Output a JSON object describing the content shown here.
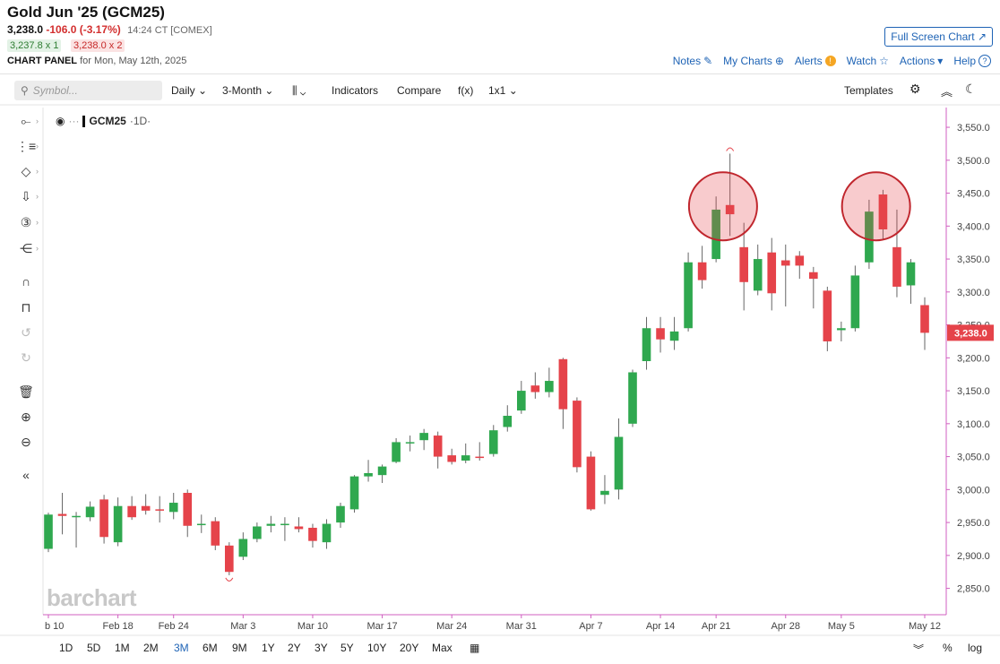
{
  "header": {
    "title": "Gold Jun '25 (GCM25)",
    "last": "3,238.0",
    "change": "-106.0 (-3.17%)",
    "time": "14:24 CT [COMEX]",
    "bid": "3,237.8 x 1",
    "ask": "3,238.0 x 2",
    "panel_label": "CHART PANEL",
    "panel_date": "for Mon, May 12th, 2025"
  },
  "links": {
    "full_screen": "Full Screen Chart ↗",
    "notes": "Notes",
    "my_charts": "My Charts",
    "alerts": "Alerts",
    "watch": "Watch",
    "actions": "Actions",
    "help": "Help"
  },
  "toolbar": {
    "search_placeholder": "Symbol...",
    "interval": "Daily",
    "period": "3-Month",
    "indicators": "Indicators",
    "compare": "Compare",
    "fx": "f(x)",
    "layout": "1x1",
    "templates": "Templates"
  },
  "legend": {
    "symbol": "GCM25",
    "interval": "·1D·"
  },
  "watermark": "barchart",
  "bottom": {
    "ranges": [
      "1D",
      "5D",
      "1M",
      "2M",
      "3M",
      "6M",
      "9M",
      "1Y",
      "2Y",
      "3Y",
      "5Y",
      "10Y",
      "20Y",
      "Max"
    ],
    "active_range": "3M",
    "percent": "%",
    "log": "log"
  },
  "chart_data": {
    "type": "candlestick",
    "title": "",
    "ylim": [
      2810,
      3580
    ],
    "y_ticks": [
      "2,850.0",
      "2,900.0",
      "2,950.0",
      "3,000.0",
      "3,050.0",
      "3,100.0",
      "3,150.0",
      "3,200.0",
      "3,250.0",
      "3,300.0",
      "3,350.0",
      "3,400.0",
      "3,450.0",
      "3,500.0",
      "3,550.0"
    ],
    "x_tick_labels": [
      "b 10",
      "Feb 18",
      "Feb 24",
      "Mar 3",
      "Mar 10",
      "Mar 17",
      "Mar 24",
      "Mar 31",
      "Apr 7",
      "Apr 14",
      "Apr 21",
      "Apr 28",
      "May 5",
      "May 12"
    ],
    "last_price_label": "3,238.0",
    "up_color": "#2fa84f",
    "down_color": "#e5434a",
    "candles": [
      {
        "d": "Feb 10",
        "o": 2910,
        "h": 2965,
        "l": 2905,
        "c": 2962
      },
      {
        "d": "Feb 11",
        "o": 2963,
        "h": 2995,
        "l": 2932,
        "c": 2960
      },
      {
        "d": "Feb 12",
        "o": 2958,
        "h": 2966,
        "l": 2912,
        "c": 2960
      },
      {
        "d": "Feb 13",
        "o": 2958,
        "h": 2982,
        "l": 2952,
        "c": 2974
      },
      {
        "d": "Feb 14",
        "o": 2985,
        "h": 2992,
        "l": 2918,
        "c": 2928
      },
      {
        "d": "Feb 18",
        "o": 2920,
        "h": 2988,
        "l": 2914,
        "c": 2975
      },
      {
        "d": "Feb 19",
        "o": 2975,
        "h": 2990,
        "l": 2954,
        "c": 2958
      },
      {
        "d": "Feb 20",
        "o": 2975,
        "h": 2993,
        "l": 2962,
        "c": 2968
      },
      {
        "d": "Feb 21",
        "o": 2970,
        "h": 2990,
        "l": 2950,
        "c": 2968
      },
      {
        "d": "Feb 24",
        "o": 2966,
        "h": 2995,
        "l": 2955,
        "c": 2980
      },
      {
        "d": "Feb 25",
        "o": 2995,
        "h": 3000,
        "l": 2928,
        "c": 2945
      },
      {
        "d": "Feb 26",
        "o": 2946,
        "h": 2962,
        "l": 2934,
        "c": 2948
      },
      {
        "d": "Feb 27",
        "o": 2952,
        "h": 2958,
        "l": 2908,
        "c": 2915
      },
      {
        "d": "Feb 28",
        "o": 2915,
        "h": 2920,
        "l": 2870,
        "c": 2875
      },
      {
        "d": "Mar 3",
        "o": 2898,
        "h": 2935,
        "l": 2893,
        "c": 2925
      },
      {
        "d": "Mar 4",
        "o": 2925,
        "h": 2950,
        "l": 2920,
        "c": 2944
      },
      {
        "d": "Mar 5",
        "o": 2945,
        "h": 2960,
        "l": 2935,
        "c": 2948
      },
      {
        "d": "Mar 6",
        "o": 2946,
        "h": 2958,
        "l": 2922,
        "c": 2948
      },
      {
        "d": "Mar 7",
        "o": 2944,
        "h": 2958,
        "l": 2935,
        "c": 2940
      },
      {
        "d": "Mar 10",
        "o": 2942,
        "h": 2948,
        "l": 2912,
        "c": 2922
      },
      {
        "d": "Mar 11",
        "o": 2920,
        "h": 2955,
        "l": 2910,
        "c": 2948
      },
      {
        "d": "Mar 12",
        "o": 2950,
        "h": 2980,
        "l": 2942,
        "c": 2975
      },
      {
        "d": "Mar 13",
        "o": 2970,
        "h": 3022,
        "l": 2965,
        "c": 3020
      },
      {
        "d": "Mar 14",
        "o": 3020,
        "h": 3045,
        "l": 3012,
        "c": 3025
      },
      {
        "d": "Mar 17",
        "o": 3022,
        "h": 3038,
        "l": 3010,
        "c": 3035
      },
      {
        "d": "Mar 18",
        "o": 3042,
        "h": 3078,
        "l": 3040,
        "c": 3072
      },
      {
        "d": "Mar 19",
        "o": 3070,
        "h": 3082,
        "l": 3058,
        "c": 3072
      },
      {
        "d": "Mar 20",
        "o": 3075,
        "h": 3092,
        "l": 3060,
        "c": 3086
      },
      {
        "d": "Mar 21",
        "o": 3082,
        "h": 3088,
        "l": 3032,
        "c": 3050
      },
      {
        "d": "Mar 24",
        "o": 3052,
        "h": 3062,
        "l": 3038,
        "c": 3042
      },
      {
        "d": "Mar 25",
        "o": 3044,
        "h": 3070,
        "l": 3040,
        "c": 3052
      },
      {
        "d": "Mar 26",
        "o": 3050,
        "h": 3072,
        "l": 3044,
        "c": 3048
      },
      {
        "d": "Mar 27",
        "o": 3054,
        "h": 3098,
        "l": 3050,
        "c": 3090
      },
      {
        "d": "Mar 28",
        "o": 3095,
        "h": 3128,
        "l": 3088,
        "c": 3112
      },
      {
        "d": "Mar 31",
        "o": 3120,
        "h": 3165,
        "l": 3115,
        "c": 3150
      },
      {
        "d": "Apr 1",
        "o": 3158,
        "h": 3178,
        "l": 3138,
        "c": 3148
      },
      {
        "d": "Apr 2",
        "o": 3148,
        "h": 3185,
        "l": 3140,
        "c": 3165
      },
      {
        "d": "Apr 3",
        "o": 3198,
        "h": 3200,
        "l": 3092,
        "c": 3122
      },
      {
        "d": "Apr 4",
        "o": 3135,
        "h": 3140,
        "l": 3026,
        "c": 3034
      },
      {
        "d": "Apr 7",
        "o": 3050,
        "h": 3058,
        "l": 2968,
        "c": 2970
      },
      {
        "d": "Apr 8",
        "o": 2992,
        "h": 3022,
        "l": 2978,
        "c": 2998
      },
      {
        "d": "Apr 9",
        "o": 3000,
        "h": 3108,
        "l": 2985,
        "c": 3080
      },
      {
        "d": "Apr 10",
        "o": 3100,
        "h": 3182,
        "l": 3095,
        "c": 3178
      },
      {
        "d": "Apr 11",
        "o": 3195,
        "h": 3262,
        "l": 3182,
        "c": 3245
      },
      {
        "d": "Apr 14",
        "o": 3245,
        "h": 3262,
        "l": 3208,
        "c": 3228
      },
      {
        "d": "Apr 15",
        "o": 3226,
        "h": 3262,
        "l": 3212,
        "c": 3240
      },
      {
        "d": "Apr 16",
        "o": 3245,
        "h": 3360,
        "l": 3240,
        "c": 3345
      },
      {
        "d": "Apr 17",
        "o": 3345,
        "h": 3370,
        "l": 3305,
        "c": 3318
      },
      {
        "d": "Apr 21",
        "o": 3350,
        "h": 3445,
        "l": 3345,
        "c": 3425
      },
      {
        "d": "Apr 22",
        "o": 3432,
        "h": 3510,
        "l": 3385,
        "c": 3418
      },
      {
        "d": "Apr 23",
        "o": 3368,
        "h": 3405,
        "l": 3272,
        "c": 3315
      },
      {
        "d": "Apr 24",
        "o": 3302,
        "h": 3372,
        "l": 3295,
        "c": 3350
      },
      {
        "d": "Apr 25",
        "o": 3360,
        "h": 3382,
        "l": 3272,
        "c": 3298
      },
      {
        "d": "Apr 28",
        "o": 3348,
        "h": 3372,
        "l": 3278,
        "c": 3340
      },
      {
        "d": "Apr 29",
        "o": 3355,
        "h": 3362,
        "l": 3320,
        "c": 3340
      },
      {
        "d": "May 1",
        "o": 3330,
        "h": 3338,
        "l": 3275,
        "c": 3320
      },
      {
        "d": "May 2",
        "o": 3302,
        "h": 3308,
        "l": 3210,
        "c": 3225
      },
      {
        "d": "May 5",
        "o": 3242,
        "h": 3255,
        "l": 3225,
        "c": 3245
      },
      {
        "d": "May 6",
        "o": 3245,
        "h": 3340,
        "l": 3240,
        "c": 3325
      },
      {
        "d": "May 7",
        "o": 3345,
        "h": 3440,
        "l": 3335,
        "c": 3422
      },
      {
        "d": "May 8",
        "o": 3448,
        "h": 3455,
        "l": 3380,
        "c": 3395
      },
      {
        "d": "May 9",
        "o": 3368,
        "h": 3425,
        "l": 3292,
        "c": 3308
      },
      {
        "d": "May 10",
        "o": 3310,
        "h": 3350,
        "l": 3282,
        "c": 3345
      },
      {
        "d": "May 12",
        "o": 3280,
        "h": 3292,
        "l": 3212,
        "c": 3238
      }
    ]
  }
}
